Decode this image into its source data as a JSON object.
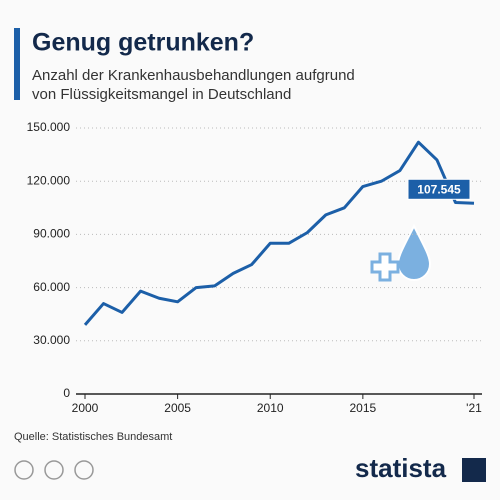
{
  "chart_data": {
    "type": "line",
    "title": "Genug getrunken?",
    "subtitle": [
      "Anzahl der Krankenhausbehandlungen aufgrund",
      "von Flüssigkeitsmangel in Deutschland"
    ],
    "source": "Quelle: Statistisches Bundesamt",
    "logo": "statista",
    "x": [
      2000,
      2001,
      2002,
      2003,
      2004,
      2005,
      2006,
      2007,
      2008,
      2009,
      2010,
      2011,
      2012,
      2013,
      2014,
      2015,
      2016,
      2017,
      2018,
      2019,
      2020,
      2021
    ],
    "values": [
      39000,
      51000,
      46000,
      58000,
      54000,
      52000,
      60000,
      61000,
      68000,
      73000,
      85000,
      85000,
      91000,
      101000,
      105000,
      117000,
      120000,
      126000,
      142000,
      132000,
      108000,
      107545
    ],
    "value_labels": [
      null,
      null,
      null,
      null,
      null,
      null,
      null,
      null,
      null,
      null,
      null,
      null,
      null,
      null,
      null,
      null,
      null,
      null,
      null,
      null,
      null,
      "107.545"
    ],
    "color": "#1c5fa8",
    "xlim": [
      2000,
      2021
    ],
    "xticks": [
      2000,
      2005,
      2010,
      2015,
      {
        "value": 2021,
        "label": "'21"
      }
    ],
    "ylim": [
      0,
      150000
    ],
    "yticks": [
      0,
      {
        "value": 30000,
        "label": "30.000"
      },
      {
        "value": 60000,
        "label": "60.000"
      },
      {
        "value": 90000,
        "label": "90.000"
      },
      {
        "value": 120000,
        "label": "120.000"
      },
      {
        "value": 150000,
        "label": "150.000"
      }
    ],
    "grid": true
  }
}
